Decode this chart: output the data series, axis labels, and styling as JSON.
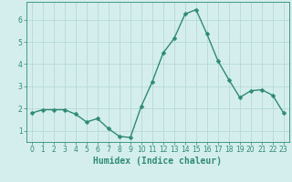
{
  "x": [
    0,
    1,
    2,
    3,
    4,
    5,
    6,
    7,
    8,
    9,
    10,
    11,
    12,
    13,
    14,
    15,
    16,
    17,
    18,
    19,
    20,
    21,
    22,
    23
  ],
  "y": [
    1.8,
    1.95,
    1.95,
    1.95,
    1.75,
    1.4,
    1.55,
    1.1,
    0.75,
    0.7,
    2.1,
    3.2,
    4.5,
    5.15,
    6.25,
    6.45,
    5.35,
    4.15,
    3.3,
    2.5,
    2.8,
    2.85,
    2.6,
    1.8
  ],
  "line_color": "#2e8b72",
  "marker": "D",
  "marker_size": 2.5,
  "background_color": "#d4eeee",
  "grid_color": "#b8d8d8",
  "xlabel": "Humidex (Indice chaleur)",
  "xlabel_fontsize": 7,
  "xlim": [
    -0.5,
    23.5
  ],
  "ylim": [
    0.5,
    6.8
  ],
  "yticks": [
    1,
    2,
    3,
    4,
    5,
    6
  ],
  "xticks": [
    0,
    1,
    2,
    3,
    4,
    5,
    6,
    7,
    8,
    9,
    10,
    11,
    12,
    13,
    14,
    15,
    16,
    17,
    18,
    19,
    20,
    21,
    22,
    23
  ],
  "tick_fontsize": 5.5,
  "line_width": 1.0,
  "spine_color": "#2e8b72",
  "tick_color": "#2e8b72"
}
